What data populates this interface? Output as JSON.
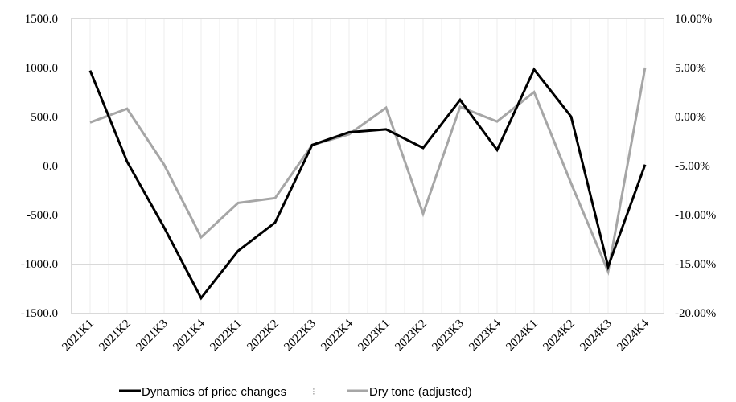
{
  "chart_data": {
    "type": "line",
    "title": "",
    "xlabel": "",
    "ylabel": "",
    "categories": [
      "2021K1",
      "2021K2",
      "2021K3",
      "2021K4",
      "2022K1",
      "2022K2",
      "2022K3",
      "2022K4",
      "2023K1",
      "2023K2",
      "2023K3",
      "2023K4",
      "2024K1",
      "2024K2",
      "2024K3",
      "2024K4"
    ],
    "y_left": {
      "range": [
        -1500,
        1500
      ],
      "ticks": [
        1500,
        1000,
        500,
        0,
        -500,
        -1000,
        -1500
      ],
      "tick_labels": [
        "1500.0",
        "1000.0",
        "500.0",
        "0.0",
        "-500.0",
        "-1000.0",
        "-1500.0"
      ]
    },
    "y_right": {
      "range": [
        -20,
        10
      ],
      "ticks": [
        10,
        5,
        0,
        -5,
        -10,
        -15,
        -20
      ],
      "tick_labels": [
        "10.00%",
        "5.00%",
        "0.00%",
        "-5.00%",
        "-10.00%",
        "-15.00%",
        "-20.00%"
      ]
    },
    "series": [
      {
        "name": "Dynamics of price changes",
        "axis": "left",
        "color": "#000000",
        "values": [
          970,
          40,
          -630,
          -1350,
          -870,
          -580,
          210,
          340,
          370,
          180,
          670,
          160,
          980,
          500,
          -1030,
          10
        ]
      },
      {
        "name": "Dry tone (adjusted)",
        "axis": "right",
        "color": "#a6a6a6",
        "values": [
          -0.6,
          0.8,
          -4.9,
          -12.3,
          -8.8,
          -8.3,
          -2.9,
          -1.8,
          0.9,
          -9.9,
          1.0,
          -0.5,
          2.5,
          -6.8,
          -15.8,
          5.0
        ]
      }
    ],
    "grid": {
      "horizontal": true,
      "vertical": true
    },
    "legend": {
      "placement": "bottom-left",
      "separator": "⁝"
    }
  }
}
